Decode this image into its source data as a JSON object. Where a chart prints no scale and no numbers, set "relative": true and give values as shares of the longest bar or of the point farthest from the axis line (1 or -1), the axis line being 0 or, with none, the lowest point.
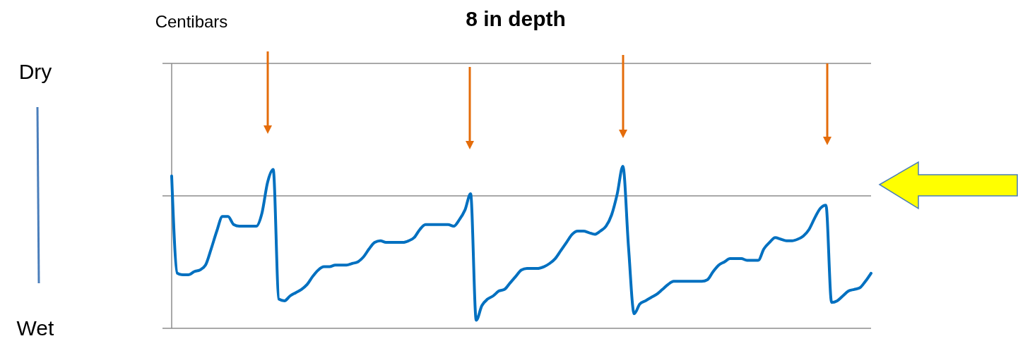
{
  "chart_data": {
    "type": "line",
    "title": "8 in depth",
    "annotations": [
      "Centibars",
      "Dry",
      "Wet"
    ],
    "relative": true,
    "color": "#0070c0",
    "categories": [
      null,
      null,
      null,
      null,
      null,
      null,
      null,
      null,
      null,
      null,
      null,
      null,
      null,
      null,
      null,
      null,
      null,
      null,
      null,
      null,
      null,
      null,
      null,
      null,
      null,
      null,
      null,
      null,
      null,
      null,
      null,
      null,
      null,
      null,
      null,
      null,
      null,
      null,
      null,
      null,
      null,
      null,
      null,
      null,
      null,
      null,
      null,
      null,
      null,
      null,
      null,
      null,
      null,
      null,
      null,
      null,
      null,
      null,
      null,
      null,
      null,
      null,
      null,
      null,
      null,
      null,
      null,
      null,
      null,
      null,
      null,
      null,
      null,
      null,
      null,
      null,
      null,
      null,
      null,
      null,
      null,
      null,
      null,
      null,
      null,
      null,
      null,
      null,
      null,
      null,
      null,
      null,
      null,
      null,
      null,
      null,
      null,
      null,
      null,
      null,
      null,
      null,
      null,
      null,
      null,
      null,
      null,
      null,
      null,
      null,
      null,
      null,
      null,
      null,
      null,
      null,
      null,
      null,
      null,
      null,
      null,
      null,
      null,
      null,
      null
    ],
    "values": [
      0.94,
      0.34,
      0.33,
      0.33,
      0.35,
      0.36,
      0.39,
      0.49,
      0.6,
      0.69,
      0.69,
      0.64,
      0.63,
      0.63,
      0.63,
      0.63,
      0.71,
      0.9,
      0.98,
      0.18,
      0.17,
      0.2,
      0.22,
      0.24,
      0.27,
      0.32,
      0.36,
      0.38,
      0.38,
      0.39,
      0.39,
      0.39,
      0.4,
      0.41,
      0.44,
      0.49,
      0.53,
      0.54,
      0.53,
      0.53,
      0.53,
      0.53,
      0.54,
      0.56,
      0.61,
      0.64,
      0.64,
      0.64,
      0.64,
      0.64,
      0.63,
      0.67,
      0.73,
      0.83,
      0.05,
      0.14,
      0.18,
      0.2,
      0.23,
      0.24,
      0.28,
      0.32,
      0.36,
      0.37,
      0.37,
      0.37,
      0.38,
      0.4,
      0.43,
      0.48,
      0.53,
      0.58,
      0.6,
      0.6,
      0.59,
      0.58,
      0.6,
      0.63,
      0.7,
      0.83,
      1,
      0.5,
      0.09,
      0.15,
      0.17,
      0.19,
      0.21,
      0.24,
      0.27,
      0.29,
      0.29,
      0.29,
      0.29,
      0.29,
      0.29,
      0.3,
      0.35,
      0.39,
      0.41,
      0.43,
      0.43,
      0.43,
      0.42,
      0.42,
      0.42,
      0.49,
      0.53,
      0.56,
      0.55,
      0.54,
      0.54,
      0.55,
      0.57,
      0.61,
      0.68,
      0.74,
      0.76,
      0.16,
      0.17,
      0.2,
      0.23,
      0.24,
      0.25,
      0.29,
      0.34
    ]
  }
}
